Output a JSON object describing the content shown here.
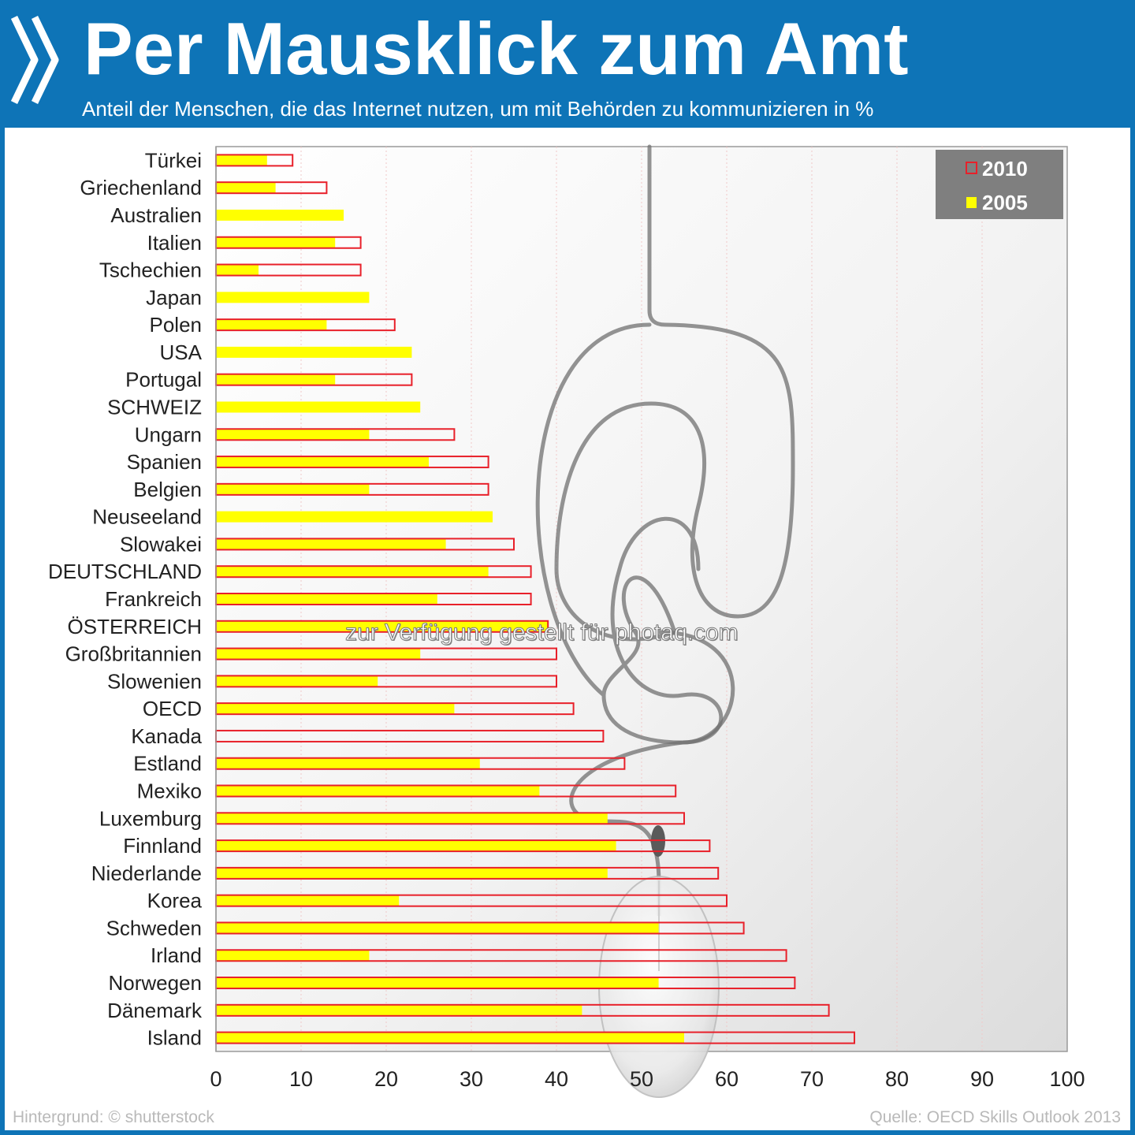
{
  "header": {
    "title": "Per Mausklick zum Amt",
    "subtitle": "Anteil der Menschen, die das Internet nutzen, um mit Behörden zu kommunizieren in %"
  },
  "footer": {
    "left": "Hintergrund: © shutterstock",
    "right": "Quelle: OECD Skills Outlook 2013"
  },
  "watermark": "zur Verfügung gestellt für photaq.com",
  "colors": {
    "header_blue": "#0e74b7",
    "series_2010_outline": "#e8202a",
    "series_2005_fill": "#ffff00",
    "legend_bg": "#7f7f7f"
  },
  "chart_data": {
    "type": "bar",
    "orientation": "horizontal",
    "title": "Per Mausklick zum Amt",
    "subtitle": "Anteil der Menschen, die das Internet nutzen, um mit Behörden zu kommunizieren in %",
    "xlabel": "",
    "ylabel": "",
    "xlim": [
      0,
      100
    ],
    "xticks": [
      "0",
      "10",
      "20",
      "30",
      "40",
      "50",
      "60",
      "70",
      "80",
      "90",
      "100"
    ],
    "grid": "vertical",
    "legend": {
      "placement": "top-right",
      "entries": [
        "2010",
        "2005"
      ]
    },
    "categories": [
      "Türkei",
      "Griechenland",
      "Australien",
      "Italien",
      "Tschechien",
      "Japan",
      "Polen",
      "USA",
      "Portugal",
      "SCHWEIZ",
      "Ungarn",
      "Spanien",
      "Belgien",
      "Neuseeland",
      "Slowakei",
      "DEUTSCHLAND",
      "Frankreich",
      "ÖSTERREICH",
      "Großbritannien",
      "Slowenien",
      "OECD",
      "Kanada",
      "Estland",
      "Mexiko",
      "Luxemburg",
      "Finnland",
      "Niederlande",
      "Korea",
      "Schweden",
      "Irland",
      "Norwegen",
      "Dänemark",
      "Island"
    ],
    "series": [
      {
        "name": "2010",
        "style": "outline",
        "color": "#e8202a",
        "values": [
          9,
          13,
          null,
          17,
          17,
          null,
          21,
          null,
          23,
          null,
          28,
          32,
          32,
          null,
          35,
          37,
          37,
          39,
          40,
          40,
          42,
          45.5,
          48,
          54,
          55,
          58,
          59,
          60,
          62,
          67,
          68,
          72,
          75
        ]
      },
      {
        "name": "2005",
        "style": "fill",
        "color": "#ffff00",
        "values": [
          6,
          7,
          15,
          14,
          5,
          18,
          13,
          23,
          14,
          24,
          18,
          25,
          18,
          32.5,
          27,
          32,
          26,
          39,
          24,
          19,
          28,
          null,
          31,
          38,
          46,
          47,
          46,
          21.5,
          52,
          18,
          52,
          43,
          55
        ]
      }
    ]
  }
}
